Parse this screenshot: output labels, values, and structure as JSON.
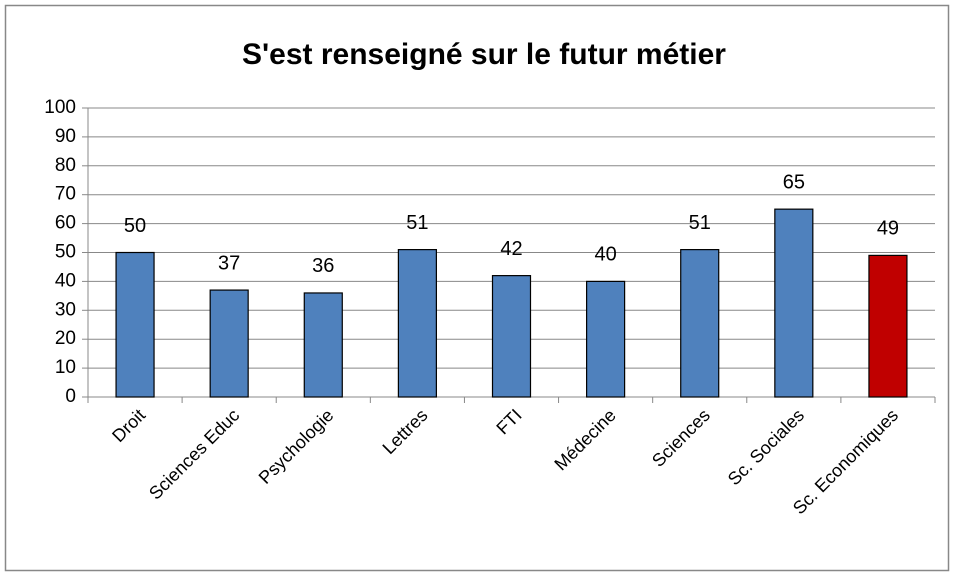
{
  "chart_data": {
    "type": "bar",
    "title": "S'est renseigné sur le futur métier",
    "categories": [
      "Droit",
      "Sciences Educ",
      "Psychologie",
      "Lettres",
      "FTI",
      "Médecine",
      "Sciences",
      "Sc. Sociales",
      "Sc. Economiques"
    ],
    "values": [
      50,
      37,
      36,
      51,
      42,
      40,
      51,
      65,
      49
    ],
    "colors": [
      "#4f81bd",
      "#4f81bd",
      "#4f81bd",
      "#4f81bd",
      "#4f81bd",
      "#4f81bd",
      "#4f81bd",
      "#4f81bd",
      "#c00000"
    ],
    "ylim": [
      0,
      100
    ],
    "yticks": [
      0,
      10,
      20,
      30,
      40,
      50,
      60,
      70,
      80,
      90,
      100
    ],
    "grid": true
  }
}
